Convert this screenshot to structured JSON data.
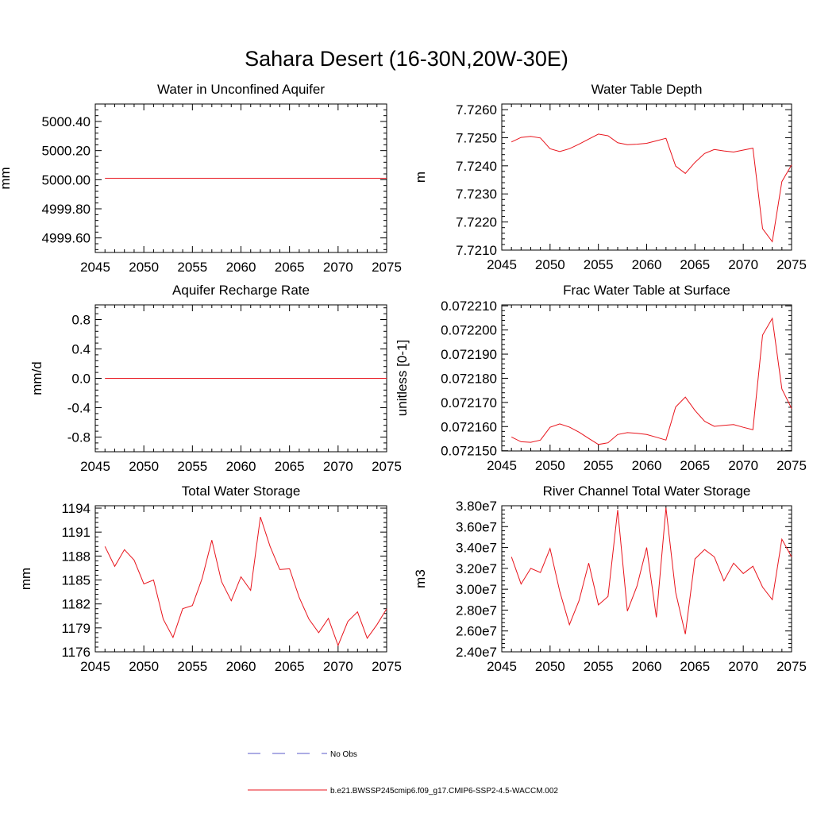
{
  "title": "Sahara Desert (16-30N,20W-30E)",
  "colors": {
    "model": "#e8141c",
    "obs": "#5a5ac8",
    "axis": "#000000"
  },
  "legend": {
    "obs_label": "No Obs",
    "model_label": "b.e21.BWSSP245cmip6.f09_g17.CMIP6-SSP2-4.5-WACCM.002"
  },
  "chart_data": [
    {
      "type": "line",
      "title": "Water in Unconfined Aquifer",
      "ylabel": "mm",
      "xlim": [
        2045,
        2075
      ],
      "ylim": [
        4999.5,
        5000.52
      ],
      "xticks": [
        2045,
        2050,
        2055,
        2060,
        2065,
        2070,
        2075
      ],
      "xtick_labels": [
        "2045",
        "2050",
        "2055",
        "2060",
        "2065",
        "2070",
        "2075"
      ],
      "yticks": [
        4999.6,
        4999.8,
        5000.0,
        5000.2,
        5000.4
      ],
      "ytick_labels": [
        "4999.60",
        "4999.80",
        "5000.00",
        "5000.20",
        "5000.40"
      ],
      "x": [
        2046,
        2047,
        2048,
        2049,
        2050,
        2051,
        2052,
        2053,
        2054,
        2055,
        2056,
        2057,
        2058,
        2059,
        2060,
        2061,
        2062,
        2063,
        2064,
        2065,
        2066,
        2067,
        2068,
        2069,
        2070,
        2071,
        2072,
        2073,
        2074,
        2075
      ],
      "y": [
        5000.01,
        5000.01,
        5000.01,
        5000.01,
        5000.01,
        5000.01,
        5000.01,
        5000.01,
        5000.01,
        5000.01,
        5000.01,
        5000.01,
        5000.01,
        5000.01,
        5000.01,
        5000.01,
        5000.01,
        5000.01,
        5000.01,
        5000.01,
        5000.01,
        5000.01,
        5000.01,
        5000.01,
        5000.01,
        5000.01,
        5000.01,
        5000.01,
        5000.01,
        5000.01
      ]
    },
    {
      "type": "line",
      "title": "Water Table Depth",
      "ylabel": "m",
      "xlim": [
        2045,
        2075
      ],
      "ylim": [
        7.721,
        7.7262
      ],
      "xticks": [
        2045,
        2050,
        2055,
        2060,
        2065,
        2070,
        2075
      ],
      "xtick_labels": [
        "2045",
        "2050",
        "2055",
        "2060",
        "2065",
        "2070",
        "2075"
      ],
      "yticks": [
        7.721,
        7.722,
        7.723,
        7.724,
        7.725,
        7.726
      ],
      "ytick_labels": [
        "7.7210",
        "7.7220",
        "7.7230",
        "7.7240",
        "7.7250",
        "7.7260"
      ],
      "x": [
        2046,
        2047,
        2048,
        2049,
        2050,
        2051,
        2052,
        2053,
        2054,
        2055,
        2056,
        2057,
        2058,
        2059,
        2060,
        2061,
        2062,
        2063,
        2064,
        2065,
        2066,
        2067,
        2068,
        2069,
        2070,
        2071,
        2072,
        2073,
        2074,
        2075
      ],
      "y": [
        7.72485,
        7.72501,
        7.72505,
        7.72499,
        7.72461,
        7.72451,
        7.72461,
        7.72477,
        7.72495,
        7.72513,
        7.72507,
        7.72482,
        7.72475,
        7.72477,
        7.7248,
        7.72489,
        7.72498,
        7.72399,
        7.72373,
        7.72412,
        7.72444,
        7.72458,
        7.72453,
        7.72449,
        7.72456,
        7.72463,
        7.72176,
        7.7213,
        7.72344,
        7.72403
      ]
    },
    {
      "type": "line",
      "title": "Aquifer Recharge Rate",
      "ylabel": "mm/d",
      "xlim": [
        2045,
        2075
      ],
      "ylim": [
        -1.0,
        1.0
      ],
      "xticks": [
        2045,
        2050,
        2055,
        2060,
        2065,
        2070,
        2075
      ],
      "xtick_labels": [
        "2045",
        "2050",
        "2055",
        "2060",
        "2065",
        "2070",
        "2075"
      ],
      "yticks": [
        -0.8,
        -0.4,
        0.0,
        0.4,
        0.8
      ],
      "ytick_labels": [
        "-0.8",
        "-0.4",
        "0.0",
        "0.4",
        "0.8"
      ],
      "x": [
        2046,
        2047,
        2048,
        2049,
        2050,
        2051,
        2052,
        2053,
        2054,
        2055,
        2056,
        2057,
        2058,
        2059,
        2060,
        2061,
        2062,
        2063,
        2064,
        2065,
        2066,
        2067,
        2068,
        2069,
        2070,
        2071,
        2072,
        2073,
        2074,
        2075
      ],
      "y": [
        0,
        0,
        0,
        0,
        0,
        0,
        0,
        0,
        0,
        0,
        0,
        0,
        0,
        0,
        0,
        0,
        0,
        0,
        0,
        0,
        0,
        0,
        0,
        0,
        0,
        0,
        0,
        0,
        0,
        0
      ]
    },
    {
      "type": "line",
      "title": "Frac Water Table at Surface",
      "ylabel": "unitless [0-1]",
      "xlim": [
        2045,
        2075
      ],
      "ylim": [
        0.0721499,
        0.0722104
      ],
      "xticks": [
        2045,
        2050,
        2055,
        2060,
        2065,
        2070,
        2075
      ],
      "xtick_labels": [
        "2045",
        "2050",
        "2055",
        "2060",
        "2065",
        "2070",
        "2075"
      ],
      "yticks": [
        0.07215,
        0.07216,
        0.07217,
        0.07218,
        0.07219,
        0.0722,
        0.07221
      ],
      "ytick_labels": [
        "0.072150",
        "0.072160",
        "0.072170",
        "0.072180",
        "0.072190",
        "0.072200",
        "0.072210"
      ],
      "x": [
        2046,
        2047,
        2048,
        2049,
        2050,
        2051,
        2052,
        2053,
        2054,
        2055,
        2056,
        2057,
        2058,
        2059,
        2060,
        2061,
        2062,
        2063,
        2064,
        2065,
        2066,
        2067,
        2068,
        2069,
        2070,
        2071,
        2072,
        2073,
        2074,
        2075
      ],
      "y": [
        0.0721557,
        0.0721537,
        0.0721535,
        0.0721544,
        0.0721597,
        0.0721611,
        0.0721598,
        0.0721577,
        0.0721551,
        0.0721526,
        0.0721533,
        0.0721567,
        0.0721575,
        0.0721572,
        0.0721567,
        0.0721556,
        0.0721544,
        0.0721681,
        0.0721722,
        0.0721667,
        0.0721622,
        0.0721601,
        0.0721605,
        0.0721608,
        0.0721597,
        0.0721587,
        0.0721979,
        0.0722048,
        0.0721756,
        0.0721675
      ]
    },
    {
      "type": "line",
      "title": "Total Water Storage",
      "ylabel": "mm",
      "xlim": [
        2045,
        2075
      ],
      "ylim": [
        1176,
        1194.3
      ],
      "xticks": [
        2045,
        2050,
        2055,
        2060,
        2065,
        2070,
        2075
      ],
      "xtick_labels": [
        "2045",
        "2050",
        "2055",
        "2060",
        "2065",
        "2070",
        "2075"
      ],
      "yticks": [
        1176,
        1179,
        1182,
        1185,
        1188,
        1191,
        1194
      ],
      "ytick_labels": [
        "1176",
        "1179",
        "1182",
        "1185",
        "1188",
        "1191",
        "1194"
      ],
      "x": [
        2046,
        2047,
        2048,
        2049,
        2050,
        2051,
        2052,
        2053,
        2054,
        2055,
        2056,
        2057,
        2058,
        2059,
        2060,
        2061,
        2062,
        2063,
        2064,
        2065,
        2066,
        2067,
        2068,
        2069,
        2070,
        2071,
        2072,
        2073,
        2074,
        2075
      ],
      "y": [
        1189.2,
        1186.7,
        1188.8,
        1187.5,
        1184.5,
        1185.0,
        1180.1,
        1177.8,
        1181.4,
        1181.8,
        1185.2,
        1190.0,
        1184.8,
        1182.4,
        1185.4,
        1183.7,
        1192.9,
        1189.2,
        1186.3,
        1186.4,
        1182.8,
        1180.1,
        1178.4,
        1180.2,
        1176.8,
        1179.8,
        1181.0,
        1177.7,
        1179.4,
        1181.4
      ]
    },
    {
      "type": "line",
      "title": "River Channel Total Water Storage",
      "ylabel": "m3",
      "xlim": [
        2045,
        2075
      ],
      "ylim": [
        24000000,
        38000000
      ],
      "xticks": [
        2045,
        2050,
        2055,
        2060,
        2065,
        2070,
        2075
      ],
      "xtick_labels": [
        "2045",
        "2050",
        "2055",
        "2060",
        "2065",
        "2070",
        "2075"
      ],
      "yticks": [
        24000000,
        26000000,
        28000000,
        30000000,
        32000000,
        34000000,
        36000000,
        38000000
      ],
      "ytick_labels": [
        "2.40e7",
        "2.60e7",
        "2.80e7",
        "3.00e7",
        "3.20e7",
        "3.40e7",
        "3.60e7",
        "3.80e7"
      ],
      "x": [
        2046,
        2047,
        2048,
        2049,
        2050,
        2051,
        2052,
        2053,
        2054,
        2055,
        2056,
        2057,
        2058,
        2059,
        2060,
        2061,
        2062,
        2063,
        2064,
        2065,
        2066,
        2067,
        2068,
        2069,
        2070,
        2071,
        2072,
        2073,
        2074,
        2075
      ],
      "y": [
        33100000,
        30500000,
        32000000,
        31600000,
        33900000,
        29800000,
        26600000,
        28900000,
        32500000,
        28500000,
        29300000,
        37600000,
        27900000,
        30300000,
        34000000,
        27300000,
        37800000,
        29700000,
        25700000,
        32900000,
        33800000,
        33100000,
        30800000,
        32500000,
        31500000,
        32200000,
        30200000,
        29000000,
        34800000,
        33100000
      ]
    }
  ]
}
